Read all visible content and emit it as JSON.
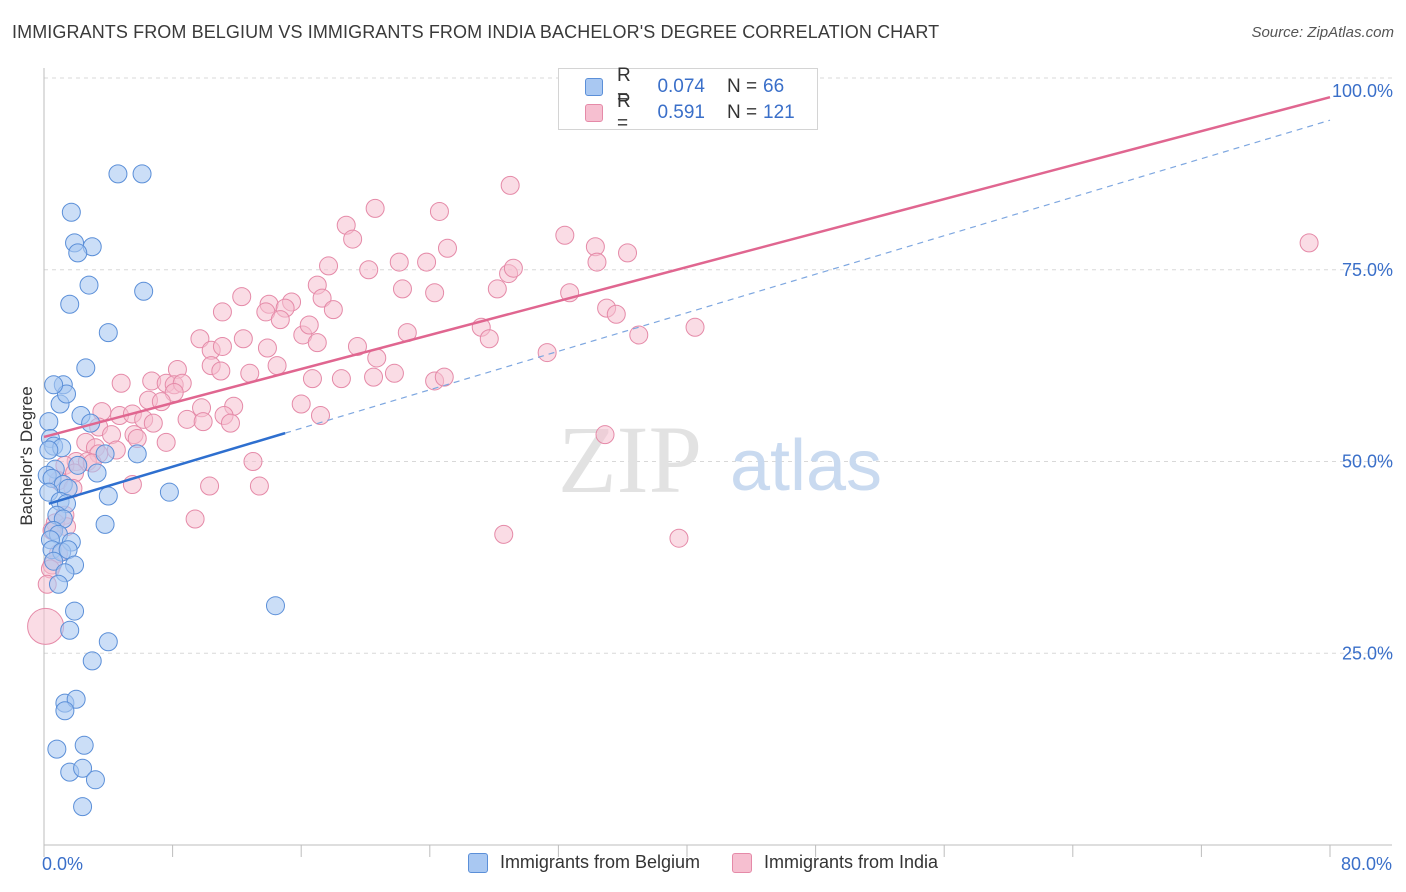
{
  "title": "IMMIGRANTS FROM BELGIUM VS IMMIGRANTS FROM INDIA BACHELOR'S DEGREE CORRELATION CHART",
  "source": "Source: ZipAtlas.com",
  "watermark": {
    "zip": "ZIP",
    "atlas": "atlas"
  },
  "legend": {
    "belgium": {
      "r_label": "R =",
      "r_value": "0.074",
      "n_label": "N =",
      "n_value": "66"
    },
    "india": {
      "r_label": "R =",
      "r_value": "0.591",
      "n_label": "N =",
      "n_value": "121"
    }
  },
  "colors": {
    "belgium_fill": "#a9c8f2",
    "belgium_stroke": "#5b8fd8",
    "belgium_line": "#2e6fcf",
    "india_fill": "#f6bfd0",
    "india_stroke": "#e58aa8",
    "india_line": "#e06690",
    "axis_text": "#3a6fc9",
    "grid": "#d8d8d8"
  },
  "chart_data": {
    "type": "scatter",
    "title": "IMMIGRANTS FROM BELGIUM VS IMMIGRANTS FROM INDIA BACHELOR'S DEGREE CORRELATION CHART",
    "xlabel": "",
    "ylabel": "Bachelor's Degree",
    "xlim": [
      0,
      80
    ],
    "ylim": [
      0,
      100
    ],
    "x_tick_labels": [
      "0.0%",
      "80.0%"
    ],
    "y_tick_labels": [
      "25.0%",
      "50.0%",
      "75.0%",
      "100.0%"
    ],
    "y_ticks": [
      25,
      50,
      75,
      100
    ],
    "x_minor_ticks": [
      0,
      8,
      16,
      24,
      32,
      40,
      48,
      56,
      64,
      72,
      80
    ],
    "series": [
      {
        "name": "Immigrants from Belgium",
        "trend": {
          "x": [
            0.3,
            15.0
          ],
          "y": [
            44.5,
            53.7
          ],
          "style": "solid"
        },
        "trend_ext": {
          "x": [
            15.0,
            80.0
          ],
          "y": [
            53.7,
            94.5
          ],
          "style": "dashed"
        },
        "points": [
          [
            4.6,
            87.5
          ],
          [
            6.1,
            87.5
          ],
          [
            1.7,
            82.5
          ],
          [
            1.9,
            78.5
          ],
          [
            3.0,
            78.0
          ],
          [
            2.1,
            77.2
          ],
          [
            2.8,
            73.0
          ],
          [
            6.2,
            72.2
          ],
          [
            1.6,
            70.5
          ],
          [
            4.0,
            66.8
          ],
          [
            2.6,
            62.2
          ],
          [
            1.2,
            60.0
          ],
          [
            1.0,
            57.5
          ],
          [
            1.4,
            58.8
          ],
          [
            0.6,
            60.0
          ],
          [
            2.3,
            56.0
          ],
          [
            2.9,
            55.0
          ],
          [
            0.3,
            55.2
          ],
          [
            0.4,
            53.0
          ],
          [
            0.6,
            52.0
          ],
          [
            1.1,
            51.8
          ],
          [
            0.3,
            51.5
          ],
          [
            3.8,
            51.0
          ],
          [
            5.8,
            51.0
          ],
          [
            0.7,
            49.0
          ],
          [
            2.1,
            49.5
          ],
          [
            0.2,
            48.2
          ],
          [
            0.5,
            47.8
          ],
          [
            3.3,
            48.5
          ],
          [
            1.2,
            47.0
          ],
          [
            1.5,
            46.5
          ],
          [
            0.3,
            46.0
          ],
          [
            4.0,
            45.5
          ],
          [
            7.8,
            46.0
          ],
          [
            1.0,
            44.8
          ],
          [
            1.4,
            44.5
          ],
          [
            0.8,
            43.0
          ],
          [
            1.2,
            42.5
          ],
          [
            3.8,
            41.8
          ],
          [
            0.6,
            41.0
          ],
          [
            0.9,
            40.5
          ],
          [
            0.4,
            39.8
          ],
          [
            1.7,
            39.5
          ],
          [
            0.5,
            38.5
          ],
          [
            1.1,
            38.2
          ],
          [
            1.5,
            38.5
          ],
          [
            1.9,
            36.5
          ],
          [
            0.6,
            37.0
          ],
          [
            1.3,
            35.5
          ],
          [
            0.9,
            34.0
          ],
          [
            14.4,
            31.2
          ],
          [
            1.9,
            30.5
          ],
          [
            1.6,
            28.0
          ],
          [
            4.0,
            26.5
          ],
          [
            3.0,
            24.0
          ],
          [
            1.3,
            18.5
          ],
          [
            2.0,
            19.0
          ],
          [
            1.3,
            17.5
          ],
          [
            0.8,
            12.5
          ],
          [
            2.5,
            13.0
          ],
          [
            1.6,
            9.5
          ],
          [
            2.4,
            10.0
          ],
          [
            3.2,
            8.5
          ],
          [
            2.4,
            5.0
          ]
        ]
      },
      {
        "name": "Immigrants from India",
        "trend": {
          "x": [
            0.0,
            80.0
          ],
          "y": [
            53.2,
            97.5
          ],
          "style": "solid"
        },
        "points": [
          [
            29.0,
            86.0
          ],
          [
            20.6,
            83.0
          ],
          [
            24.6,
            82.6
          ],
          [
            18.8,
            80.8
          ],
          [
            19.2,
            79.0
          ],
          [
            32.4,
            79.5
          ],
          [
            34.3,
            78.0
          ],
          [
            25.1,
            77.8
          ],
          [
            36.3,
            77.2
          ],
          [
            78.7,
            78.5
          ],
          [
            22.1,
            76.0
          ],
          [
            23.8,
            76.0
          ],
          [
            17.7,
            75.5
          ],
          [
            20.2,
            75.0
          ],
          [
            28.9,
            74.5
          ],
          [
            29.2,
            75.2
          ],
          [
            34.4,
            76.0
          ],
          [
            17.0,
            73.0
          ],
          [
            22.3,
            72.5
          ],
          [
            24.3,
            72.0
          ],
          [
            28.2,
            72.5
          ],
          [
            32.7,
            72.0
          ],
          [
            12.3,
            71.5
          ],
          [
            14.0,
            70.5
          ],
          [
            15.4,
            70.8
          ],
          [
            17.3,
            71.3
          ],
          [
            18.0,
            69.8
          ],
          [
            13.8,
            69.5
          ],
          [
            15.0,
            70.0
          ],
          [
            11.1,
            69.5
          ],
          [
            14.7,
            68.5
          ],
          [
            16.1,
            66.5
          ],
          [
            16.5,
            67.8
          ],
          [
            35.0,
            70.0
          ],
          [
            35.6,
            69.2
          ],
          [
            40.5,
            67.5
          ],
          [
            9.7,
            66.0
          ],
          [
            12.4,
            66.0
          ],
          [
            10.4,
            64.5
          ],
          [
            11.1,
            65.0
          ],
          [
            13.9,
            64.8
          ],
          [
            17.0,
            65.5
          ],
          [
            19.5,
            65.0
          ],
          [
            20.7,
            63.5
          ],
          [
            22.6,
            66.8
          ],
          [
            27.2,
            67.5
          ],
          [
            27.7,
            66.0
          ],
          [
            31.3,
            64.2
          ],
          [
            37.0,
            66.5
          ],
          [
            14.5,
            62.5
          ],
          [
            8.3,
            62.0
          ],
          [
            10.4,
            62.5
          ],
          [
            11.0,
            61.8
          ],
          [
            12.8,
            61.5
          ],
          [
            16.7,
            60.8
          ],
          [
            18.5,
            60.8
          ],
          [
            20.5,
            61.0
          ],
          [
            21.8,
            61.5
          ],
          [
            24.3,
            60.5
          ],
          [
            24.9,
            61.0
          ],
          [
            4.8,
            60.2
          ],
          [
            6.7,
            60.5
          ],
          [
            7.6,
            60.2
          ],
          [
            8.1,
            60.0
          ],
          [
            8.6,
            60.2
          ],
          [
            6.5,
            58.0
          ],
          [
            8.1,
            59.0
          ],
          [
            9.8,
            57.0
          ],
          [
            11.8,
            57.2
          ],
          [
            7.3,
            57.8
          ],
          [
            16.0,
            57.5
          ],
          [
            3.6,
            56.5
          ],
          [
            4.7,
            56.0
          ],
          [
            5.5,
            56.2
          ],
          [
            6.2,
            55.5
          ],
          [
            6.8,
            55.0
          ],
          [
            8.9,
            55.5
          ],
          [
            9.9,
            55.2
          ],
          [
            11.2,
            56.0
          ],
          [
            11.6,
            55.0
          ],
          [
            17.2,
            56.0
          ],
          [
            3.4,
            54.5
          ],
          [
            4.2,
            53.5
          ],
          [
            5.6,
            53.5
          ],
          [
            2.6,
            52.5
          ],
          [
            3.2,
            51.8
          ],
          [
            5.8,
            53.0
          ],
          [
            7.6,
            52.5
          ],
          [
            4.5,
            51.5
          ],
          [
            3.4,
            51.0
          ],
          [
            2.0,
            50.0
          ],
          [
            2.7,
            50.0
          ],
          [
            3.0,
            49.8
          ],
          [
            13.0,
            50.0
          ],
          [
            1.3,
            49.5
          ],
          [
            1.9,
            48.5
          ],
          [
            0.9,
            47.5
          ],
          [
            5.5,
            47.0
          ],
          [
            10.3,
            46.8
          ],
          [
            13.4,
            46.8
          ],
          [
            1.8,
            46.5
          ],
          [
            1.3,
            43.0
          ],
          [
            9.4,
            42.5
          ],
          [
            0.7,
            42.0
          ],
          [
            1.4,
            41.5
          ],
          [
            0.5,
            41.0
          ],
          [
            28.6,
            40.5
          ],
          [
            39.5,
            40.0
          ],
          [
            34.9,
            53.5
          ],
          [
            0.9,
            38.0
          ],
          [
            0.5,
            36.5
          ],
          [
            0.4,
            36.0
          ],
          [
            0.2,
            34.0
          ],
          [
            0.1,
            28.5
          ]
        ]
      }
    ],
    "legend_entries": [
      "Immigrants from Belgium",
      "Immigrants from India"
    ]
  }
}
